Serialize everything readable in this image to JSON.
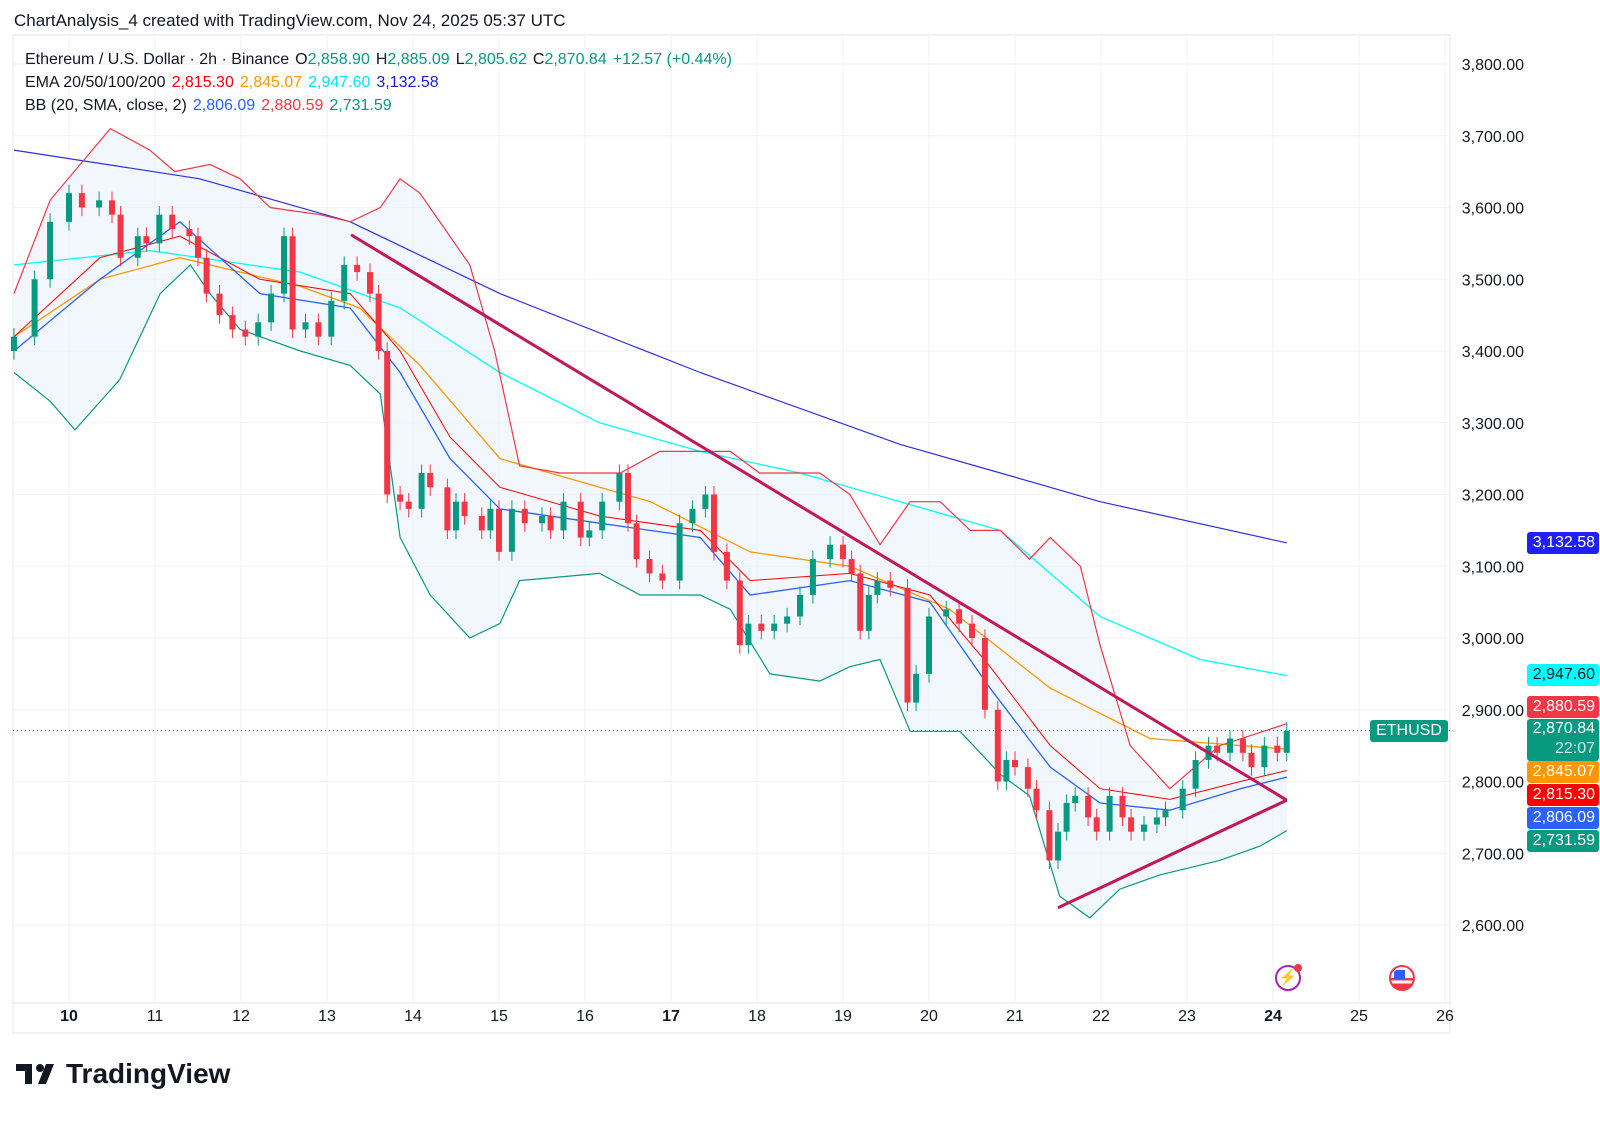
{
  "credit": "ChartAnalysis_4 created with TradingView.com, Nov 24, 2025 05:37 UTC",
  "legend": {
    "symbol": "Ethereum / U.S. Dollar · 2h · Binance",
    "o_label": "O",
    "o": "2,858.90",
    "h_label": "H",
    "h": "2,885.09",
    "l_label": "L",
    "l": "2,805.62",
    "c_label": "C",
    "c": "2,870.84",
    "change": "+12.57 (+0.44%)",
    "ema_label": "EMA 20/50/100/200",
    "ema20": "2,815.30",
    "ema50": "2,845.07",
    "ema100": "2,947.60",
    "ema200": "3,132.58",
    "bb_label": "BB (20, SMA, close, 2)",
    "bb_basis": "2,806.09",
    "bb_upper": "2,880.59",
    "bb_lower": "2,731.59"
  },
  "price_labels": {
    "ema200": "3,132.58",
    "ema100": "2,947.60",
    "bb_upper": "2,880.59",
    "symbol": "ETHUSD",
    "last": "2,870.84",
    "countdown": "22:07",
    "ema50": "2,845.07",
    "ema20": "2,815.30",
    "bb_basis": "2,806.09",
    "bb_lower": "2,731.59"
  },
  "colors": {
    "up": "#089981",
    "down": "#f23645",
    "ema20": "#ff0000",
    "ema50": "#ff9800",
    "ema100": "#00ffff",
    "ema200": "#3030e0",
    "bb_basis": "#2962ff",
    "bb_upper": "#f23645",
    "bb_lower": "#089981",
    "trendline": "#c2185b",
    "band_fill": "#e8f2fb"
  },
  "logo": "TradingView",
  "icons": [
    "lightning-icon",
    "us-flag-icon"
  ],
  "chart_data": {
    "type": "candlestick",
    "xlabel": "",
    "ylabel": "",
    "x_ticks": [
      "10",
      "11",
      "12",
      "13",
      "14",
      "15",
      "16",
      "17",
      "18",
      "19",
      "20",
      "21",
      "22",
      "23",
      "24",
      "25",
      "26"
    ],
    "x_range_days": [
      9.36,
      26.1
    ],
    "y_ticks": [
      "3,800.00",
      "3,700.00",
      "3,600.00",
      "3,500.00",
      "3,400.00",
      "3,300.00",
      "3,200.00",
      "3,100.00",
      "3,000.00",
      "2,900.00",
      "2,800.00",
      "2,700.00",
      "2,600.00"
    ],
    "ylim": [
      2510,
      3840
    ],
    "grid": true,
    "candles_day_close": [
      [
        9.36,
        3420
      ],
      [
        9.6,
        3500
      ],
      [
        9.78,
        3580
      ],
      [
        10.0,
        3620
      ],
      [
        10.15,
        3600
      ],
      [
        10.35,
        3610
      ],
      [
        10.5,
        3590
      ],
      [
        10.6,
        3530
      ],
      [
        10.8,
        3560
      ],
      [
        10.9,
        3550
      ],
      [
        11.05,
        3590
      ],
      [
        11.2,
        3570
      ],
      [
        11.4,
        3560
      ],
      [
        11.5,
        3530
      ],
      [
        11.6,
        3480
      ],
      [
        11.75,
        3450
      ],
      [
        11.9,
        3430
      ],
      [
        12.05,
        3420
      ],
      [
        12.2,
        3440
      ],
      [
        12.35,
        3480
      ],
      [
        12.5,
        3560
      ],
      [
        12.6,
        3430
      ],
      [
        12.75,
        3440
      ],
      [
        12.9,
        3420
      ],
      [
        13.05,
        3470
      ],
      [
        13.2,
        3520
      ],
      [
        13.35,
        3510
      ],
      [
        13.5,
        3480
      ],
      [
        13.6,
        3400
      ],
      [
        13.7,
        3200
      ],
      [
        13.85,
        3190
      ],
      [
        13.95,
        3180
      ],
      [
        14.1,
        3230
      ],
      [
        14.2,
        3210
      ],
      [
        14.4,
        3150
      ],
      [
        14.5,
        3190
      ],
      [
        14.6,
        3170
      ],
      [
        14.8,
        3150
      ],
      [
        14.9,
        3180
      ],
      [
        15.0,
        3120
      ],
      [
        15.15,
        3180
      ],
      [
        15.3,
        3160
      ],
      [
        15.5,
        3170
      ],
      [
        15.6,
        3150
      ],
      [
        15.75,
        3190
      ],
      [
        15.95,
        3140
      ],
      [
        16.05,
        3150
      ],
      [
        16.2,
        3190
      ],
      [
        16.4,
        3230
      ],
      [
        16.5,
        3160
      ],
      [
        16.6,
        3110
      ],
      [
        16.75,
        3090
      ],
      [
        16.9,
        3080
      ],
      [
        17.1,
        3160
      ],
      [
        17.25,
        3180
      ],
      [
        17.4,
        3200
      ],
      [
        17.5,
        3120
      ],
      [
        17.65,
        3080
      ],
      [
        17.8,
        2990
      ],
      [
        17.9,
        3020
      ],
      [
        18.05,
        3010
      ],
      [
        18.2,
        3020
      ],
      [
        18.35,
        3030
      ],
      [
        18.5,
        3060
      ],
      [
        18.65,
        3110
      ],
      [
        18.85,
        3130
      ],
      [
        19.0,
        3110
      ],
      [
        19.1,
        3090
      ],
      [
        19.2,
        3010
      ],
      [
        19.3,
        3060
      ],
      [
        19.4,
        3080
      ],
      [
        19.55,
        3070
      ],
      [
        19.75,
        2910
      ],
      [
        19.85,
        2950
      ],
      [
        20.0,
        3030
      ],
      [
        20.2,
        3040
      ],
      [
        20.35,
        3020
      ],
      [
        20.5,
        3000
      ],
      [
        20.65,
        2900
      ],
      [
        20.8,
        2800
      ],
      [
        20.9,
        2830
      ],
      [
        21.0,
        2820
      ],
      [
        21.15,
        2790
      ],
      [
        21.25,
        2760
      ],
      [
        21.4,
        2690
      ],
      [
        21.5,
        2730
      ],
      [
        21.6,
        2770
      ],
      [
        21.7,
        2780
      ],
      [
        21.85,
        2750
      ],
      [
        21.95,
        2730
      ],
      [
        22.1,
        2780
      ],
      [
        22.25,
        2750
      ],
      [
        22.35,
        2730
      ],
      [
        22.5,
        2740
      ],
      [
        22.65,
        2750
      ],
      [
        22.75,
        2760
      ],
      [
        22.95,
        2790
      ],
      [
        23.1,
        2830
      ],
      [
        23.25,
        2850
      ],
      [
        23.35,
        2840
      ],
      [
        23.5,
        2860
      ],
      [
        23.65,
        2840
      ],
      [
        23.75,
        2820
      ],
      [
        23.9,
        2850
      ],
      [
        24.05,
        2840
      ],
      [
        24.16,
        2870.84
      ]
    ],
    "lines": {
      "ema200": [
        [
          9.36,
          3680
        ],
        [
          11.52,
          3640
        ],
        [
          13.27,
          3580
        ],
        [
          15.01,
          3480
        ],
        [
          17.34,
          3370
        ],
        [
          19.66,
          3270
        ],
        [
          20.83,
          3230
        ],
        [
          21.99,
          3190
        ],
        [
          24.16,
          3132.58
        ]
      ],
      "ema100": [
        [
          9.36,
          3520
        ],
        [
          10.94,
          3540
        ],
        [
          12.69,
          3510
        ],
        [
          13.85,
          3460
        ],
        [
          15.01,
          3370
        ],
        [
          16.17,
          3300
        ],
        [
          17.34,
          3260
        ],
        [
          18.5,
          3230
        ],
        [
          19.66,
          3190
        ],
        [
          20.83,
          3150
        ],
        [
          21.99,
          3030
        ],
        [
          23.15,
          2970
        ],
        [
          24.16,
          2947.6
        ]
      ],
      "ema50": [
        [
          9.36,
          3420
        ],
        [
          10.36,
          3500
        ],
        [
          11.29,
          3530
        ],
        [
          12.69,
          3490
        ],
        [
          13.38,
          3460
        ],
        [
          14.08,
          3380
        ],
        [
          15.01,
          3250
        ],
        [
          16.17,
          3210
        ],
        [
          16.76,
          3190
        ],
        [
          17.92,
          3120
        ],
        [
          19.08,
          3100
        ],
        [
          20.24,
          3040
        ],
        [
          21.41,
          2930
        ],
        [
          22.57,
          2860
        ],
        [
          24.16,
          2845.07
        ]
      ],
      "ema20": [
        [
          9.36,
          3420
        ],
        [
          10.36,
          3530
        ],
        [
          11.29,
          3560
        ],
        [
          12.22,
          3500
        ],
        [
          13.27,
          3480
        ],
        [
          13.85,
          3400
        ],
        [
          14.43,
          3280
        ],
        [
          15.01,
          3210
        ],
        [
          16.17,
          3170
        ],
        [
          17.34,
          3150
        ],
        [
          17.92,
          3080
        ],
        [
          19.08,
          3090
        ],
        [
          20.01,
          3060
        ],
        [
          20.71,
          2960
        ],
        [
          21.41,
          2850
        ],
        [
          21.99,
          2790
        ],
        [
          22.8,
          2775
        ],
        [
          23.62,
          2800
        ],
        [
          24.16,
          2815.3
        ]
      ],
      "bb_basis": [
        [
          9.36,
          3400
        ],
        [
          10.36,
          3500
        ],
        [
          11.29,
          3580
        ],
        [
          12.22,
          3480
        ],
        [
          13.27,
          3460
        ],
        [
          13.85,
          3370
        ],
        [
          14.43,
          3250
        ],
        [
          15.01,
          3180
        ],
        [
          16.17,
          3160
        ],
        [
          17.34,
          3140
        ],
        [
          17.92,
          3060
        ],
        [
          19.08,
          3080
        ],
        [
          20.01,
          3050
        ],
        [
          20.71,
          2930
        ],
        [
          21.41,
          2820
        ],
        [
          21.99,
          2770
        ],
        [
          22.8,
          2760
        ],
        [
          23.62,
          2790
        ],
        [
          24.16,
          2806.09
        ]
      ],
      "bb_upper": [
        [
          9.36,
          3480
        ],
        [
          9.78,
          3610
        ],
        [
          10.48,
          3710
        ],
        [
          10.94,
          3680
        ],
        [
          11.23,
          3650
        ],
        [
          11.64,
          3660
        ],
        [
          11.99,
          3640
        ],
        [
          12.34,
          3600
        ],
        [
          12.92,
          3590
        ],
        [
          13.27,
          3580
        ],
        [
          13.62,
          3600
        ],
        [
          13.85,
          3640
        ],
        [
          14.08,
          3620
        ],
        [
          14.66,
          3520
        ],
        [
          14.95,
          3400
        ],
        [
          15.24,
          3240
        ],
        [
          15.71,
          3230
        ],
        [
          16.41,
          3230
        ],
        [
          16.87,
          3260
        ],
        [
          17.69,
          3260
        ],
        [
          18.03,
          3230
        ],
        [
          18.73,
          3230
        ],
        [
          19.08,
          3200
        ],
        [
          19.43,
          3130
        ],
        [
          19.78,
          3190
        ],
        [
          20.13,
          3190
        ],
        [
          20.48,
          3150
        ],
        [
          20.83,
          3150
        ],
        [
          21.17,
          3110
        ],
        [
          21.41,
          3140
        ],
        [
          21.76,
          3100
        ],
        [
          21.99,
          2990
        ],
        [
          22.34,
          2850
        ],
        [
          22.8,
          2790
        ],
        [
          23.38,
          2850
        ],
        [
          24.16,
          2880.59
        ]
      ],
      "bb_lower": [
        [
          9.36,
          3370
        ],
        [
          9.78,
          3330
        ],
        [
          10.07,
          3290
        ],
        [
          10.59,
          3360
        ],
        [
          11.06,
          3480
        ],
        [
          11.41,
          3520
        ],
        [
          11.64,
          3480
        ],
        [
          11.99,
          3430
        ],
        [
          12.69,
          3400
        ],
        [
          13.27,
          3380
        ],
        [
          13.62,
          3340
        ],
        [
          13.85,
          3140
        ],
        [
          14.2,
          3060
        ],
        [
          14.66,
          3000
        ],
        [
          15.01,
          3020
        ],
        [
          15.24,
          3080
        ],
        [
          16.17,
          3090
        ],
        [
          16.64,
          3060
        ],
        [
          17.34,
          3060
        ],
        [
          17.69,
          3040
        ],
        [
          18.15,
          2950
        ],
        [
          18.73,
          2940
        ],
        [
          19.08,
          2960
        ],
        [
          19.43,
          2970
        ],
        [
          19.78,
          2870
        ],
        [
          20.36,
          2870
        ],
        [
          20.83,
          2810
        ],
        [
          21.17,
          2780
        ],
        [
          21.52,
          2640
        ],
        [
          21.87,
          2610
        ],
        [
          22.22,
          2650
        ],
        [
          22.69,
          2670
        ],
        [
          23.38,
          2690
        ],
        [
          23.85,
          2710
        ],
        [
          24.16,
          2731.59
        ]
      ]
    },
    "trendlines": [
      [
        [
          13.28,
          3562
        ],
        [
          24.16,
          2774
        ]
      ],
      [
        [
          21.5,
          2624
        ],
        [
          24.16,
          2774
        ]
      ]
    ],
    "last_price": 2870.84
  }
}
